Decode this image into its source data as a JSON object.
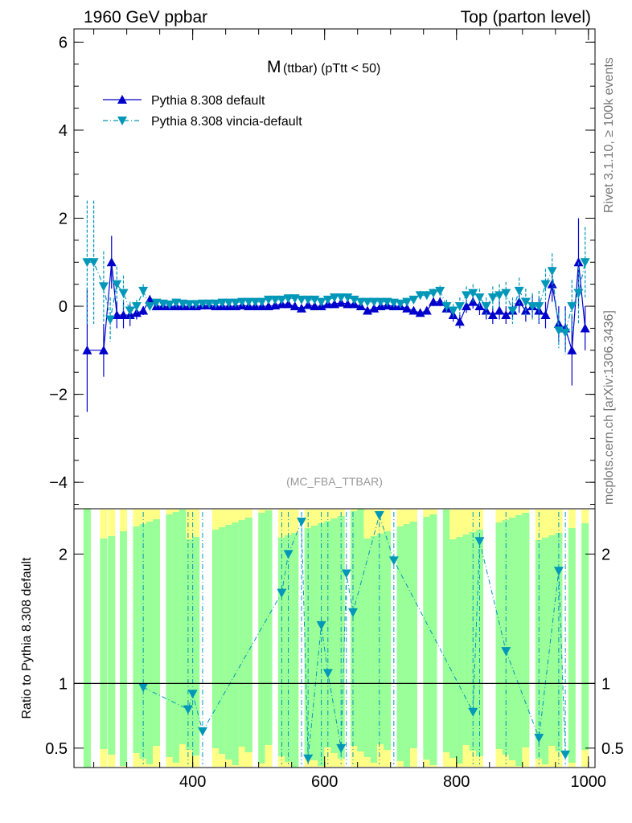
{
  "header": {
    "left": "1960 GeV ppbar",
    "right": "Top (parton level)"
  },
  "side_labels": {
    "rivet": "Rivet 3.1.10, ≥ 100k events",
    "site": "mcplots.cern.ch [arXiv:1306.3436]"
  },
  "chart_data": [
    {
      "id": "main",
      "type": "line",
      "title_main": "M",
      "title_sub": "(ttbar) (pTtt < 50)",
      "analysis_label": "(MC_FBA_TTBAR)",
      "xlabel": "",
      "ylabel": "",
      "xlim": [
        220,
        1010
      ],
      "ylim": [
        -4.6,
        6.3
      ],
      "yticks": [
        -4,
        -2,
        0,
        2,
        4,
        6
      ],
      "ytick_labels": [
        "−4",
        "−2",
        "0",
        "2",
        "4",
        "6"
      ],
      "legend_position": "top-left",
      "series": [
        {
          "name": "Pythia 8.308 default",
          "color": "#0000cc",
          "marker": "triangle-up",
          "style": "solid",
          "x": [
            240,
            265,
            277,
            285,
            295,
            305,
            315,
            325,
            335,
            345,
            355,
            365,
            375,
            385,
            395,
            405,
            415,
            425,
            435,
            445,
            455,
            465,
            475,
            485,
            495,
            505,
            515,
            525,
            535,
            545,
            555,
            565,
            575,
            585,
            595,
            605,
            615,
            625,
            635,
            645,
            655,
            665,
            675,
            685,
            695,
            705,
            715,
            725,
            735,
            745,
            755,
            765,
            775,
            785,
            795,
            805,
            815,
            825,
            835,
            845,
            855,
            865,
            875,
            885,
            895,
            905,
            915,
            925,
            935,
            945,
            955,
            965,
            975,
            985,
            995
          ],
          "y": [
            -1.0,
            -1.0,
            1.0,
            -0.2,
            -0.2,
            -0.2,
            -0.15,
            -0.1,
            0.15,
            0.0,
            0.0,
            0.0,
            0.0,
            0.0,
            0.0,
            0.0,
            0.02,
            0.02,
            0.0,
            0.0,
            0.0,
            0.0,
            0.02,
            0.0,
            0.0,
            0.0,
            0.0,
            0.02,
            0.05,
            0.05,
            0.0,
            -0.05,
            0.03,
            0.0,
            0.0,
            0.05,
            0.05,
            0.08,
            0.05,
            0.05,
            0.0,
            -0.1,
            -0.05,
            0.0,
            0.02,
            0.0,
            0.0,
            -0.05,
            -0.1,
            -0.15,
            -0.1,
            0.1,
            0.1,
            -0.05,
            -0.2,
            -0.35,
            0.0,
            0.1,
            0.0,
            -0.1,
            -0.2,
            -0.1,
            -0.2,
            -0.1,
            0.1,
            -0.1,
            0.0,
            -0.1,
            -0.2,
            0.5,
            -0.4,
            -0.5,
            -1.0,
            1.0,
            -0.5
          ],
          "yerr": [
            1.4,
            0.6,
            0.6,
            0.3,
            0.3,
            0.25,
            0.15,
            0.1,
            0.1,
            0.05,
            0.05,
            0.05,
            0.05,
            0.05,
            0.05,
            0.05,
            0.05,
            0.05,
            0.05,
            0.05,
            0.05,
            0.05,
            0.05,
            0.05,
            0.05,
            0.05,
            0.05,
            0.05,
            0.05,
            0.05,
            0.05,
            0.05,
            0.05,
            0.05,
            0.05,
            0.05,
            0.05,
            0.05,
            0.05,
            0.05,
            0.05,
            0.05,
            0.05,
            0.05,
            0.05,
            0.05,
            0.05,
            0.05,
            0.08,
            0.08,
            0.08,
            0.1,
            0.1,
            0.1,
            0.15,
            0.15,
            0.15,
            0.15,
            0.2,
            0.2,
            0.2,
            0.2,
            0.2,
            0.2,
            0.25,
            0.25,
            0.25,
            0.3,
            0.3,
            0.4,
            0.4,
            0.5,
            0.8,
            1.0,
            0.5
          ]
        },
        {
          "name": "Pythia 8.308 vincia-default",
          "color": "#0097b8",
          "marker": "triangle-down",
          "style": "dashdot",
          "x": [
            240,
            250,
            265,
            275,
            285,
            295,
            305,
            315,
            325,
            335,
            345,
            355,
            365,
            375,
            385,
            395,
            405,
            415,
            425,
            435,
            445,
            455,
            465,
            475,
            485,
            495,
            505,
            515,
            525,
            535,
            545,
            555,
            565,
            575,
            585,
            595,
            605,
            615,
            625,
            635,
            645,
            655,
            665,
            675,
            685,
            695,
            705,
            715,
            725,
            735,
            745,
            755,
            765,
            775,
            785,
            795,
            805,
            815,
            825,
            835,
            845,
            855,
            865,
            875,
            885,
            895,
            905,
            915,
            925,
            935,
            945,
            955,
            965,
            975,
            985,
            995
          ],
          "y": [
            1.0,
            1.0,
            0.45,
            -0.3,
            0.5,
            0.3,
            -0.1,
            0.0,
            0.35,
            0.0,
            0.08,
            0.06,
            0.04,
            0.08,
            0.06,
            0.05,
            0.05,
            0.06,
            0.06,
            0.06,
            0.08,
            0.08,
            0.08,
            0.1,
            0.1,
            0.1,
            0.1,
            0.15,
            0.15,
            0.15,
            0.18,
            0.18,
            0.15,
            0.15,
            0.15,
            0.1,
            0.15,
            0.2,
            0.2,
            0.2,
            0.15,
            0.1,
            0.1,
            0.1,
            0.1,
            0.1,
            0.08,
            0.06,
            0.1,
            0.15,
            0.25,
            0.25,
            0.3,
            0.35,
            0.0,
            -0.1,
            0.0,
            0.25,
            0.3,
            0.2,
            0.0,
            0.2,
            0.25,
            0.3,
            -0.1,
            0.35,
            0.1,
            0.0,
            0.0,
            0.5,
            0.8,
            -0.55,
            -0.6,
            0.0,
            0.3,
            1.0
          ],
          "yerr": [
            1.4,
            1.4,
            0.8,
            0.5,
            0.4,
            0.4,
            0.2,
            0.15,
            0.15,
            0.08,
            0.06,
            0.06,
            0.06,
            0.06,
            0.06,
            0.06,
            0.06,
            0.06,
            0.06,
            0.06,
            0.06,
            0.06,
            0.06,
            0.06,
            0.06,
            0.06,
            0.06,
            0.06,
            0.06,
            0.06,
            0.06,
            0.06,
            0.06,
            0.06,
            0.06,
            0.06,
            0.06,
            0.06,
            0.06,
            0.06,
            0.06,
            0.06,
            0.06,
            0.06,
            0.06,
            0.06,
            0.08,
            0.08,
            0.08,
            0.08,
            0.1,
            0.1,
            0.1,
            0.12,
            0.15,
            0.15,
            0.2,
            0.2,
            0.2,
            0.2,
            0.2,
            0.25,
            0.25,
            0.25,
            0.3,
            0.3,
            0.3,
            0.3,
            0.35,
            0.35,
            0.4,
            0.4,
            0.5,
            0.6,
            0.7,
            0.8
          ]
        }
      ]
    },
    {
      "id": "ratio",
      "type": "line",
      "ylabel": "Ratio to Pythia 8.308 default",
      "xlabel": "",
      "xlim": [
        220,
        1010
      ],
      "ylim": [
        0.35,
        2.35
      ],
      "yticks": [
        0.5,
        1,
        2
      ],
      "ytick_labels": [
        "0.5",
        "1",
        "2"
      ],
      "xticks": [
        400,
        600,
        800,
        1000
      ],
      "xtick_labels": [
        "400",
        "600",
        "800",
        "1000"
      ],
      "reference_line": 1,
      "series_name": "Pythia 8.308 vincia-default",
      "color": "#0097b8",
      "x": [
        325,
        393,
        400,
        415,
        535,
        545,
        565,
        575,
        595,
        605,
        625,
        633,
        643,
        683,
        705,
        825,
        835,
        875,
        925,
        955,
        965
      ],
      "y": [
        0.97,
        0.8,
        0.92,
        0.63,
        1.7,
        2.0,
        2.25,
        0.42,
        1.45,
        1.08,
        0.5,
        1.85,
        1.55,
        2.3,
        1.95,
        0.78,
        2.1,
        1.25,
        0.58,
        1.87,
        0.45
      ],
      "green_band_x": [
        240,
        265,
        277,
        285,
        295,
        305,
        315,
        325,
        335,
        345,
        355,
        365,
        375,
        385,
        395,
        405,
        415,
        425,
        435,
        445,
        455,
        465,
        475,
        485,
        495,
        505,
        515,
        525,
        535,
        545,
        555,
        565,
        575,
        585,
        595,
        605,
        615,
        625,
        635,
        645,
        655,
        665,
        675,
        685,
        695,
        705,
        715,
        725,
        735,
        745,
        755,
        765,
        775,
        785,
        795,
        805,
        815,
        825,
        835,
        845,
        855,
        865,
        875,
        885,
        895,
        905,
        915,
        925,
        935,
        945,
        955,
        965,
        975,
        985,
        995
      ],
      "green_band_hi": [
        2.35,
        2.35,
        2.35,
        2.35,
        2.35,
        2.35,
        2.35,
        2.35,
        2.35,
        2.35,
        2.35,
        2.35,
        2.35,
        2.35,
        2.35,
        2.35,
        2.35,
        2.35,
        2.35,
        2.35,
        2.35,
        2.35,
        2.35,
        2.35,
        2.35,
        2.35,
        2.35,
        2.35,
        2.35,
        2.35,
        2.35,
        2.35,
        2.35,
        2.35,
        2.35,
        2.35,
        2.35,
        2.35,
        2.35,
        2.35,
        2.35,
        2.35,
        2.35,
        2.35,
        2.35,
        2.35,
        2.35,
        2.35,
        2.35,
        2.35,
        2.35,
        2.35,
        2.35,
        2.35,
        2.35,
        2.35,
        2.35,
        2.35,
        2.35,
        2.35,
        2.35,
        2.35,
        2.35,
        2.35,
        2.35,
        2.35,
        2.35,
        2.35,
        2.35,
        2.35,
        2.35,
        2.35,
        2.35,
        2.35,
        2.35
      ]
    }
  ]
}
